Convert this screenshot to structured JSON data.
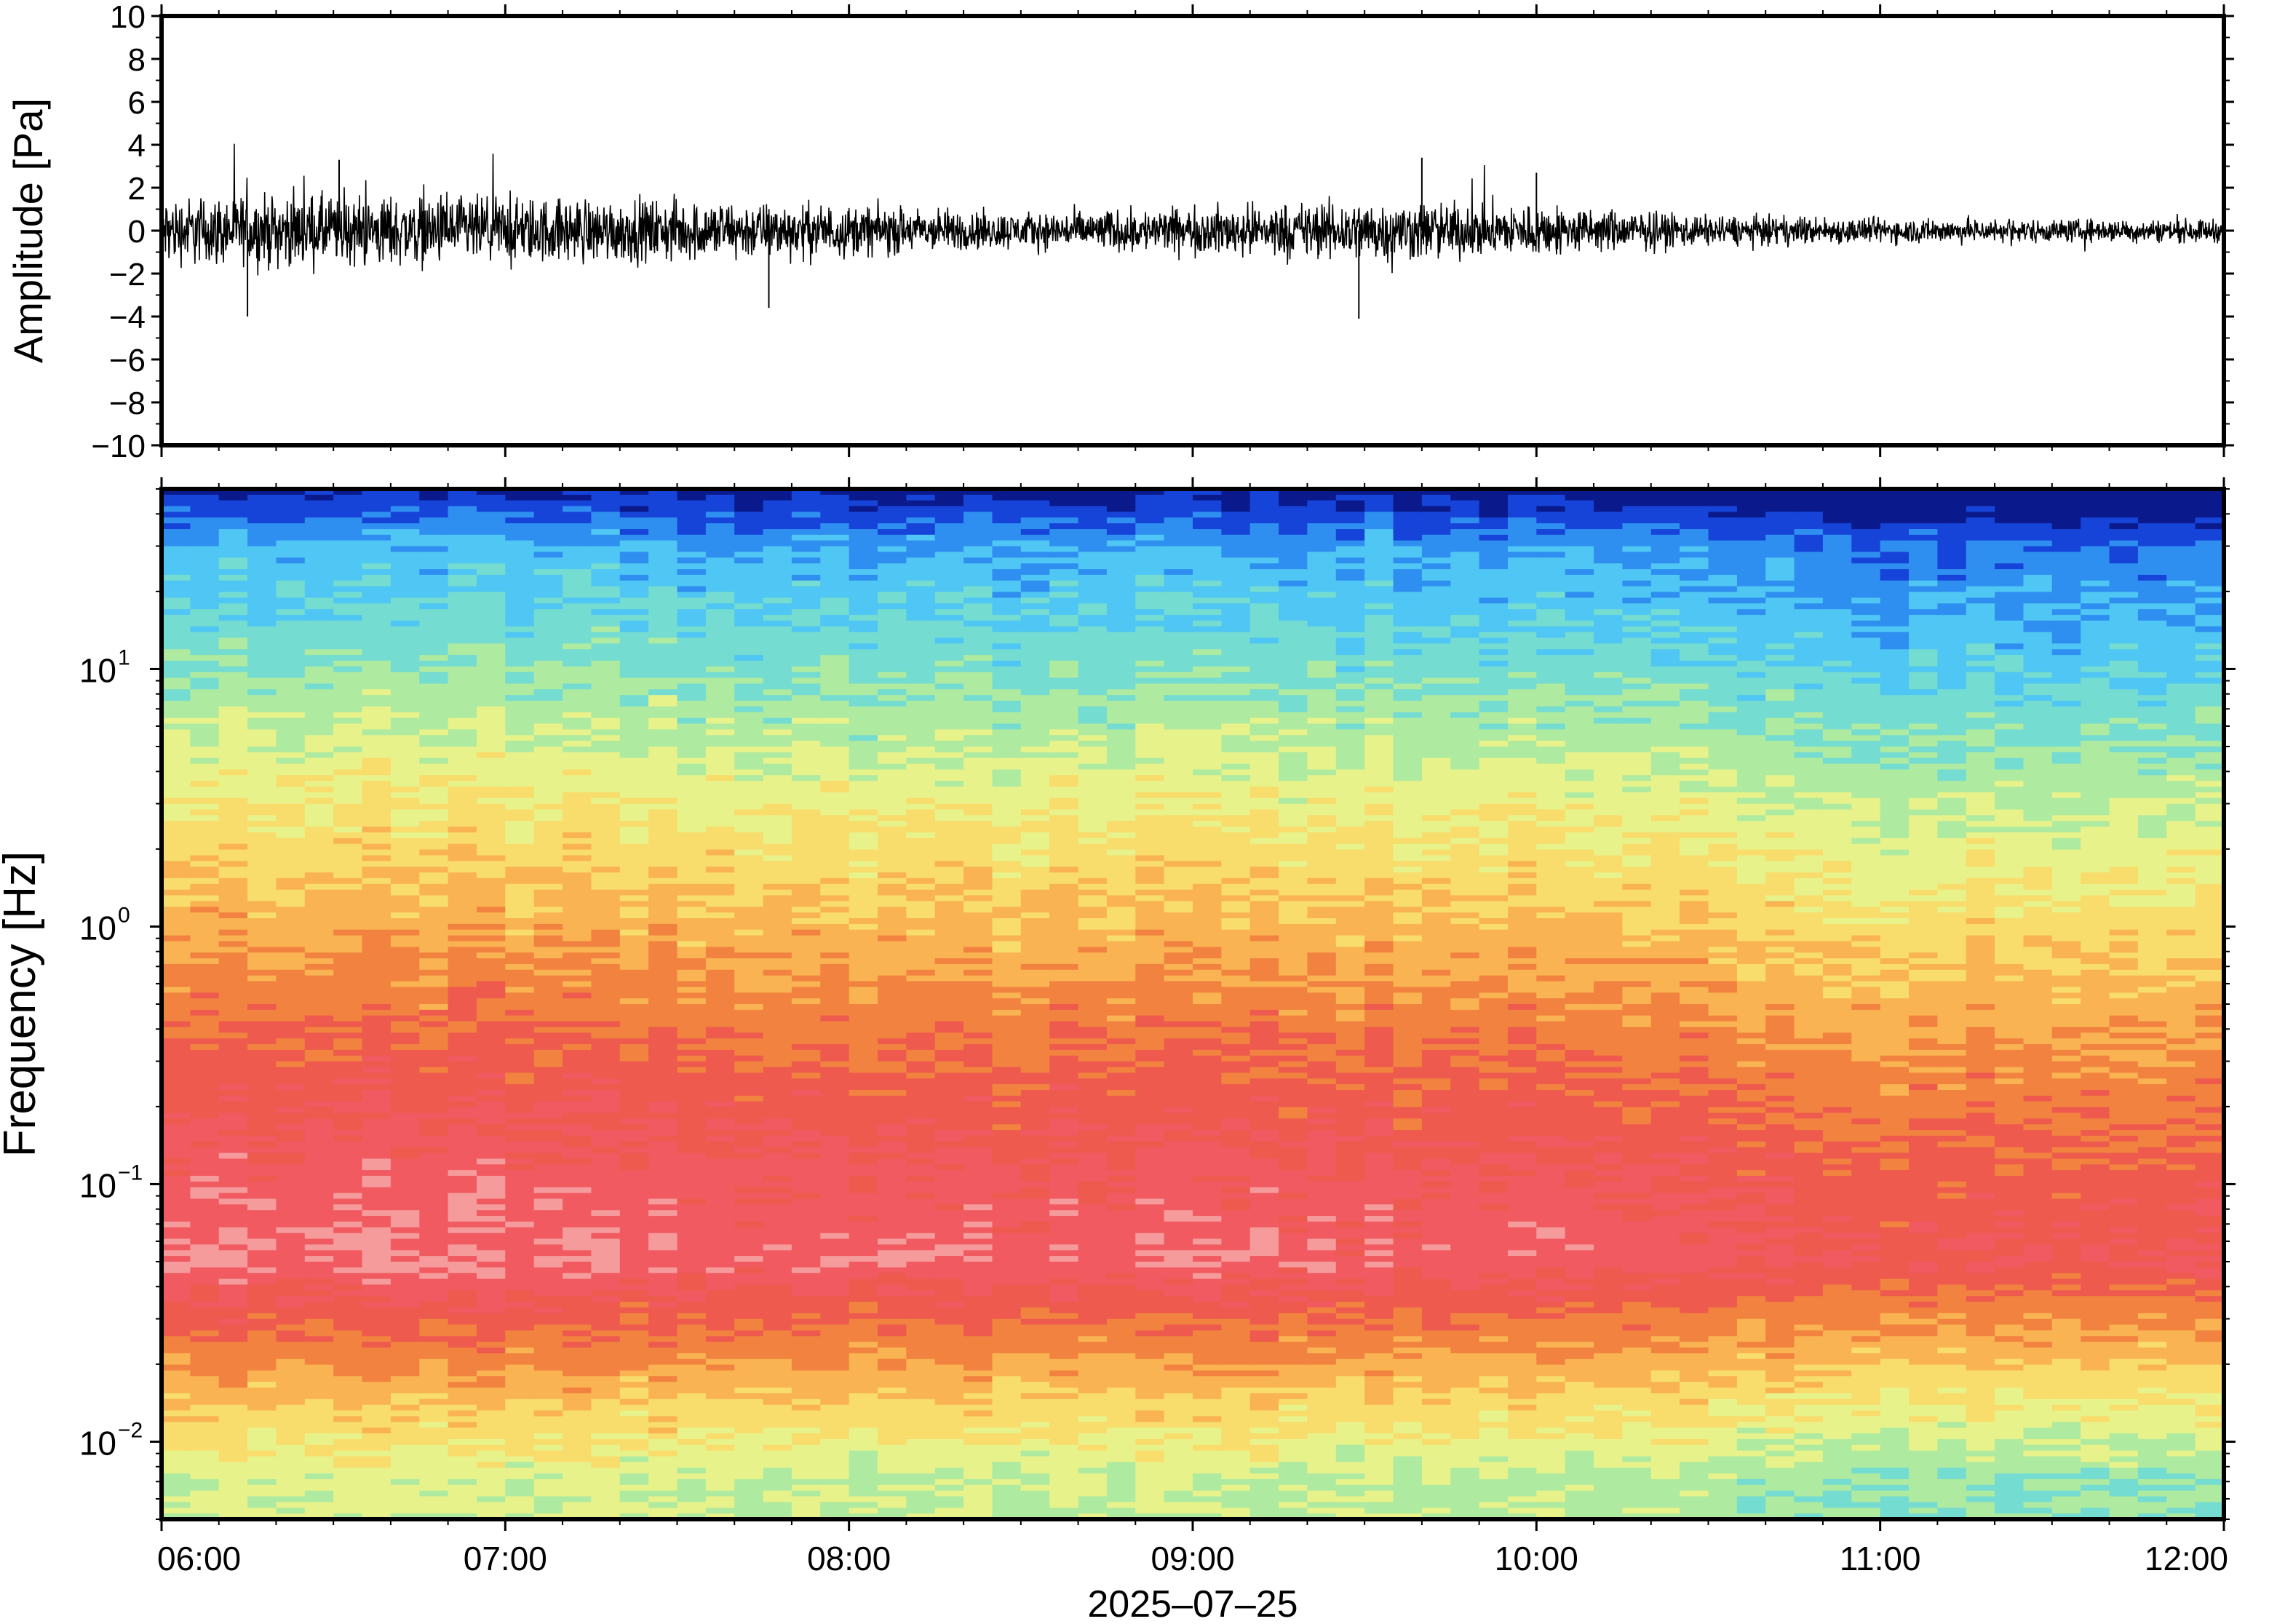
{
  "chart_data": [
    {
      "type": "line",
      "title": "",
      "ylabel": "Amplitude [Pa]",
      "xlim": [
        "06:00",
        "12:00"
      ],
      "ylim": [
        -10,
        10
      ],
      "y_ticks": [
        10,
        8,
        6,
        4,
        2,
        0,
        -2,
        -4,
        -6,
        -8,
        -10
      ],
      "y_tick_labels": [
        "10",
        "8",
        "6",
        "4",
        "2",
        "0",
        "−2",
        "−4",
        "−6",
        "−8",
        "−10"
      ],
      "grid": false,
      "series_color": "#000000",
      "envelope": {
        "time": [
          "06:00",
          "06:30",
          "07:00",
          "07:30",
          "08:00",
          "08:30",
          "09:00",
          "09:30",
          "10:00",
          "10:30",
          "11:00",
          "11:30",
          "12:00"
        ],
        "half_range": [
          1.3,
          1.4,
          1.3,
          1.2,
          1.0,
          0.7,
          0.9,
          1.2,
          1.0,
          0.6,
          0.5,
          0.45,
          0.45
        ]
      },
      "peaks": [
        {
          "time": "06:15",
          "value": -4.0
        },
        {
          "time": "06:31",
          "value": 3.3
        },
        {
          "time": "07:46",
          "value": -3.6
        },
        {
          "time": "09:29",
          "value": -4.1
        },
        {
          "time": "09:40",
          "value": 3.4
        },
        {
          "time": "10:00",
          "value": 2.7
        }
      ]
    },
    {
      "type": "heatmap",
      "title": "",
      "xlabel": "2025–07–25",
      "ylabel": "Frequency [Hz]",
      "x_tick_labels": [
        "06:00",
        "07:00",
        "08:00",
        "09:00",
        "10:00",
        "11:00",
        "12:00"
      ],
      "y_scale": "log",
      "ylim": [
        0.005,
        50
      ],
      "y_ticks": [
        0.01,
        0.1,
        1,
        10
      ],
      "y_tick_mantissa": [
        "10",
        "10",
        "10",
        "10"
      ],
      "y_tick_exponents": [
        "−2",
        "−1",
        "0",
        "1"
      ],
      "colormap": [
        "#0a1a8c",
        "#1744d8",
        "#2f8ff0",
        "#4fc6f3",
        "#74dcd0",
        "#aeeaa0",
        "#e8f28a",
        "#f8dc6c",
        "#f9b352",
        "#f2823f",
        "#ee5a4e",
        "#f05a60",
        "#f59b9b"
      ],
      "intensity_by_frequency": {
        "frequency_hz": [
          50,
          30,
          10,
          3,
          1,
          0.3,
          0.1,
          0.05,
          0.03,
          0.015,
          0.007
        ],
        "level": [
          0.0,
          0.2,
          0.35,
          0.52,
          0.65,
          0.8,
          0.9,
          0.94,
          0.8,
          0.62,
          0.45
        ]
      },
      "time_modulation": {
        "time": [
          "06:00",
          "07:00",
          "08:00",
          "09:00",
          "10:00",
          "11:00",
          "12:00"
        ],
        "offset": [
          0.03,
          0.03,
          0.0,
          0.0,
          0.0,
          -0.06,
          -0.08
        ]
      }
    }
  ]
}
